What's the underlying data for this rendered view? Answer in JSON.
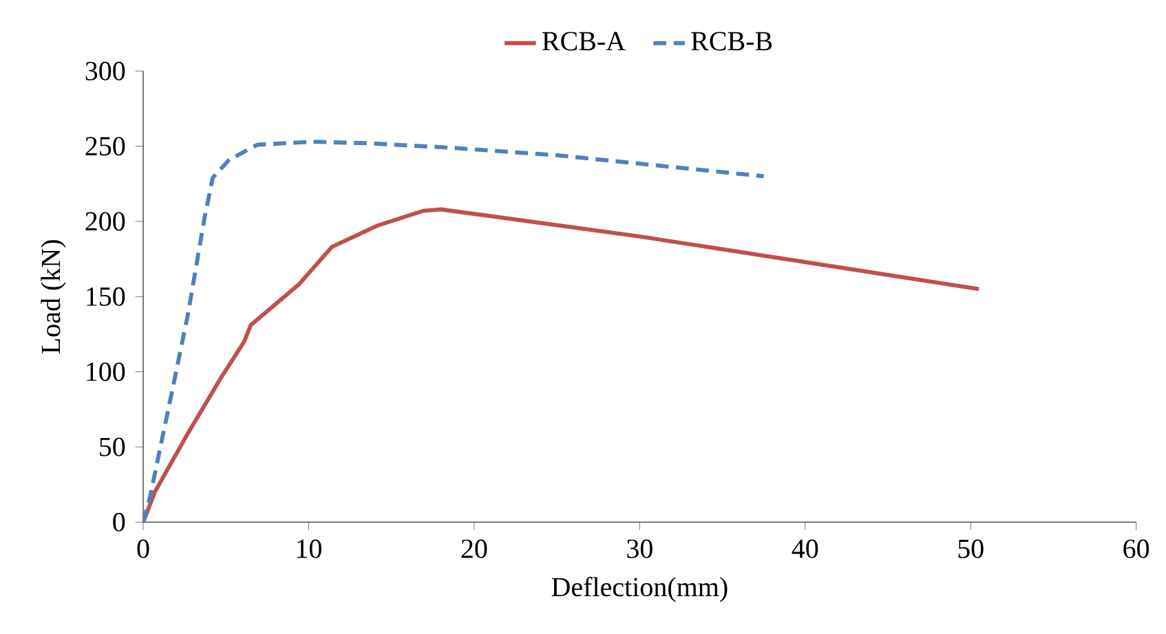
{
  "chart_data": {
    "type": "line",
    "xlabel": "Deflection(mm)",
    "ylabel": "Load (kN)",
    "xlim": [
      0,
      60
    ],
    "ylim": [
      0,
      300
    ],
    "xticks": [
      0,
      10,
      20,
      30,
      40,
      50,
      60
    ],
    "yticks": [
      0,
      50,
      100,
      150,
      200,
      250,
      300
    ],
    "legend": "top",
    "grid": false,
    "series": [
      {
        "name": "RCB-A",
        "color": "#c0504d",
        "line_style": "solid",
        "x": [
          0,
          0.7,
          2.7,
          4.7,
          6.1,
          6.5,
          9.4,
          11.4,
          14.1,
          16.9,
          18.0,
          30,
          50.5
        ],
        "values": [
          0,
          20,
          59,
          96,
          120,
          131,
          158,
          183,
          197,
          207,
          208,
          190,
          155
        ]
      },
      {
        "name": "RCB-B",
        "color": "#4f81bd",
        "line_style": "dashed",
        "x": [
          0,
          0.4,
          1.8,
          2.7,
          3.7,
          4.2,
          5.2,
          6.9,
          10.2,
          13.6,
          18.6,
          25,
          37.5
        ],
        "values": [
          0,
          16,
          90,
          138,
          202,
          229,
          241,
          251,
          253,
          252,
          249,
          244,
          230
        ]
      }
    ]
  }
}
